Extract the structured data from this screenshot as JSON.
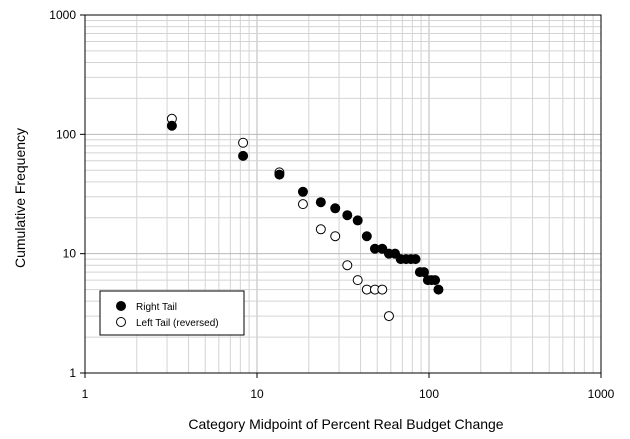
{
  "chart_data": {
    "type": "scatter",
    "title": "",
    "xlabel": "Category Midpoint of Percent Real Budget Change",
    "ylabel": "Cumulative Frequency",
    "x_scale": "log",
    "y_scale": "log",
    "xlim": [
      1,
      1000
    ],
    "ylim": [
      1,
      1000
    ],
    "x_ticks": [
      {
        "value": 1,
        "label": "1"
      },
      {
        "value": 10,
        "label": "10"
      },
      {
        "value": 100,
        "label": "100"
      },
      {
        "value": 1000,
        "label": "1000"
      }
    ],
    "y_ticks": [
      {
        "value": 1,
        "label": "1"
      },
      {
        "value": 10,
        "label": "10"
      },
      {
        "value": 100,
        "label": "100"
      },
      {
        "value": 1000,
        "label": "1000"
      }
    ],
    "grid": true,
    "legend_position": "bottom-left",
    "series": [
      {
        "name": "Right Tail",
        "marker": "filled-circle",
        "color": "#000000",
        "points": [
          {
            "x": 3.2,
            "y": 118
          },
          {
            "x": 8.3,
            "y": 66
          },
          {
            "x": 13.5,
            "y": 46
          },
          {
            "x": 18.5,
            "y": 33
          },
          {
            "x": 23.5,
            "y": 27
          },
          {
            "x": 28.5,
            "y": 24
          },
          {
            "x": 33.5,
            "y": 21
          },
          {
            "x": 38.5,
            "y": 19
          },
          {
            "x": 43.5,
            "y": 14
          },
          {
            "x": 48.5,
            "y": 11
          },
          {
            "x": 53.5,
            "y": 11
          },
          {
            "x": 58.5,
            "y": 10
          },
          {
            "x": 63.5,
            "y": 10
          },
          {
            "x": 68.5,
            "y": 9
          },
          {
            "x": 73.5,
            "y": 9
          },
          {
            "x": 78.5,
            "y": 9
          },
          {
            "x": 83.5,
            "y": 9
          },
          {
            "x": 88.5,
            "y": 7
          },
          {
            "x": 93.5,
            "y": 7
          },
          {
            "x": 98.5,
            "y": 6
          },
          {
            "x": 103.5,
            "y": 6
          },
          {
            "x": 108.5,
            "y": 6
          },
          {
            "x": 113.5,
            "y": 5
          }
        ]
      },
      {
        "name": "Left Tail (reversed)",
        "marker": "open-circle",
        "color": "#000000",
        "points": [
          {
            "x": 3.2,
            "y": 135
          },
          {
            "x": 8.3,
            "y": 85
          },
          {
            "x": 13.5,
            "y": 48
          },
          {
            "x": 18.5,
            "y": 26
          },
          {
            "x": 23.5,
            "y": 16
          },
          {
            "x": 28.5,
            "y": 14
          },
          {
            "x": 33.5,
            "y": 8
          },
          {
            "x": 38.5,
            "y": 6
          },
          {
            "x": 43.5,
            "y": 5
          },
          {
            "x": 48.5,
            "y": 5
          },
          {
            "x": 53.5,
            "y": 5
          },
          {
            "x": 58.5,
            "y": 3
          }
        ]
      }
    ]
  }
}
